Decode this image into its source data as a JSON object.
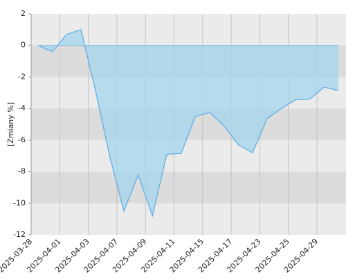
{
  "chart_data": {
    "type": "area",
    "y_label": "[Zmiany %]",
    "x_tick_labels": [
      "2025-03-28",
      "2025-04-01",
      "2025-04-03",
      "2025-04-07",
      "2025-04-09",
      "2025-04-11",
      "2025-04-15",
      "2025-04-17",
      "2025-04-23",
      "2025-04-25",
      "2025-04-29"
    ],
    "values": [
      0,
      -0.4,
      0.7,
      1.0,
      -2.8,
      -7.0,
      -10.5,
      -8.2,
      -10.8,
      -6.9,
      -6.85,
      -4.5,
      -4.25,
      -5.1,
      -6.3,
      -6.8,
      -4.65,
      -4.0,
      -3.45,
      -3.4,
      -2.65,
      -2.85
    ],
    "line_color": "#5aaae6",
    "fill_color": "#a3d6ee",
    "ylim": [
      -12,
      2
    ],
    "yticks": [
      2,
      0,
      -2,
      -4,
      -6,
      -8,
      -10,
      -12
    ],
    "grid": true
  }
}
